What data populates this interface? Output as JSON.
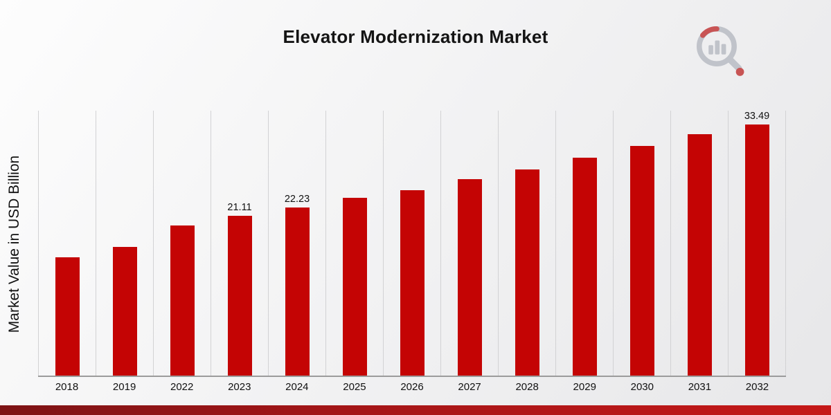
{
  "header": {
    "title": "Elevator Modernization Market"
  },
  "branding": {
    "logo_icon": "magnifier-bar-chart-logo"
  },
  "colors": {
    "bar": "#c40404",
    "ribbon_left": "#7d1315",
    "ribbon_mid": "#a31517",
    "ribbon_right": "#c51818",
    "gridline": "#d2d2d4",
    "baseline": "#9b9b9b"
  },
  "chart_data": {
    "type": "bar",
    "title": "Elevator Modernization Market",
    "xlabel": "",
    "ylabel": "Market Value in USD Billion",
    "categories": [
      "2018",
      "2019",
      "2022",
      "2023",
      "2024",
      "2025",
      "2026",
      "2027",
      "2028",
      "2029",
      "2030",
      "2031",
      "2032"
    ],
    "values": [
      15.6,
      17.0,
      19.8,
      21.11,
      22.23,
      23.5,
      24.5,
      26.0,
      27.2,
      28.8,
      30.3,
      31.9,
      33.49
    ],
    "value_labels": {
      "2023": "21.11",
      "2024": "22.23",
      "2032": "33.49"
    },
    "ylim": [
      0,
      35
    ],
    "grid": "vertical",
    "legend": "none"
  }
}
